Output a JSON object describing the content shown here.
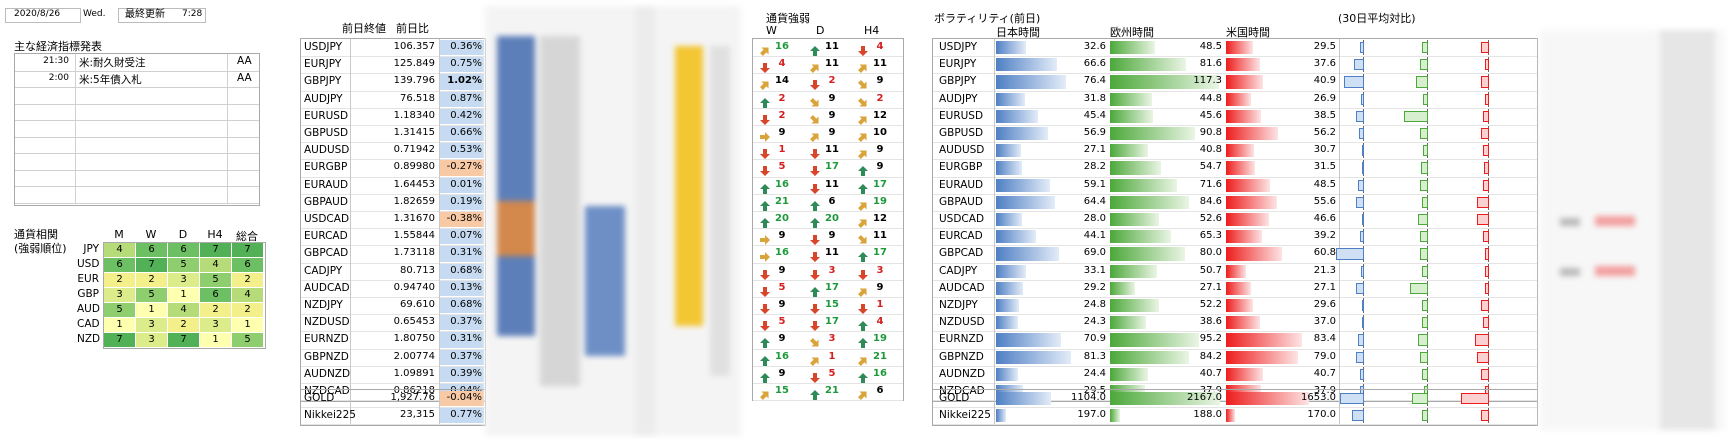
{
  "header": {
    "date": "2020/8/26",
    "weekday": "Wed.",
    "updated_label": "最終更新",
    "updated_time": "7:28"
  },
  "econ": {
    "title": "主な経済指標発表",
    "rows": [
      {
        "time": "21:30",
        "name": "米:耐久財受注",
        "rank": "AA"
      },
      {
        "time": "2:00",
        "name": "米:5年債入札",
        "rank": "AA"
      },
      {
        "time": "",
        "name": "",
        "rank": ""
      },
      {
        "time": "",
        "name": "",
        "rank": ""
      },
      {
        "time": "",
        "name": "",
        "rank": ""
      },
      {
        "time": "",
        "name": "",
        "rank": ""
      },
      {
        "time": "",
        "name": "",
        "rank": ""
      },
      {
        "time": "",
        "name": "",
        "rank": ""
      },
      {
        "time": "",
        "name": "",
        "rank": ""
      }
    ]
  },
  "corr": {
    "title1": "通貨相関",
    "title2": "(強弱順位)",
    "headers": [
      "M",
      "W",
      "D",
      "H4",
      "総合"
    ],
    "rows": [
      {
        "ccy": "JPY",
        "vals": [
          "4",
          "6",
          "6",
          "7",
          "7"
        ]
      },
      {
        "ccy": "USD",
        "vals": [
          "6",
          "7",
          "5",
          "4",
          "6"
        ]
      },
      {
        "ccy": "EUR",
        "vals": [
          "2",
          "2",
          "3",
          "5",
          "2"
        ]
      },
      {
        "ccy": "GBP",
        "vals": [
          "3",
          "5",
          "1",
          "6",
          "4"
        ]
      },
      {
        "ccy": "AUD",
        "vals": [
          "5",
          "1",
          "4",
          "2",
          "2"
        ]
      },
      {
        "ccy": "CAD",
        "vals": [
          "1",
          "3",
          "2",
          "3",
          "1"
        ]
      },
      {
        "ccy": "NZD",
        "vals": [
          "7",
          "3",
          "7",
          "1",
          "5"
        ]
      }
    ]
  },
  "quotes": {
    "col_close": "前日終値",
    "col_change": "前日比",
    "rows": [
      {
        "pair": "USDJPY",
        "close": "106.357",
        "chg": "0.36%",
        "sign": 1
      },
      {
        "pair": "EURJPY",
        "close": "125.849",
        "chg": "0.75%",
        "sign": 1
      },
      {
        "pair": "GBPJPY",
        "close": "139.796",
        "chg": "1.02%",
        "sign": 1,
        "bold": true
      },
      {
        "pair": "AUDJPY",
        "close": "76.518",
        "chg": "0.87%",
        "sign": 1
      },
      {
        "pair": "EURUSD",
        "close": "1.18340",
        "chg": "0.42%",
        "sign": 1
      },
      {
        "pair": "GBPUSD",
        "close": "1.31415",
        "chg": "0.66%",
        "sign": 1
      },
      {
        "pair": "AUDUSD",
        "close": "0.71942",
        "chg": "0.53%",
        "sign": 1
      },
      {
        "pair": "EURGBP",
        "close": "0.89980",
        "chg": "-0.27%",
        "sign": -1
      },
      {
        "pair": "EURAUD",
        "close": "1.64453",
        "chg": "0.01%",
        "sign": 1
      },
      {
        "pair": "GBPAUD",
        "close": "1.82659",
        "chg": "0.19%",
        "sign": 1
      },
      {
        "pair": "USDCAD",
        "close": "1.31670",
        "chg": "-0.38%",
        "sign": -1
      },
      {
        "pair": "EURCAD",
        "close": "1.55844",
        "chg": "0.07%",
        "sign": 1
      },
      {
        "pair": "GBPCAD",
        "close": "1.73118",
        "chg": "0.31%",
        "sign": 1
      },
      {
        "pair": "CADJPY",
        "close": "80.713",
        "chg": "0.68%",
        "sign": 1
      },
      {
        "pair": "AUDCAD",
        "close": "0.94740",
        "chg": "0.13%",
        "sign": 1
      },
      {
        "pair": "NZDJPY",
        "close": "69.610",
        "chg": "0.68%",
        "sign": 1
      },
      {
        "pair": "NZDUSD",
        "close": "0.65453",
        "chg": "0.37%",
        "sign": 1
      },
      {
        "pair": "EURNZD",
        "close": "1.80750",
        "chg": "0.31%",
        "sign": 1
      },
      {
        "pair": "GBPNZD",
        "close": "2.00774",
        "chg": "0.37%",
        "sign": 1
      },
      {
        "pair": "AUDNZD",
        "close": "1.09891",
        "chg": "0.39%",
        "sign": 1
      },
      {
        "pair": "NZDCAD",
        "close": "0.86218",
        "chg": "0.04%",
        "sign": 1
      }
    ],
    "extra": [
      {
        "pair": "GOLD",
        "close": "1,927.76",
        "chg": "-0.04%",
        "sign": -1
      },
      {
        "pair": "Nikkei225",
        "close": "23,315",
        "chg": "0.77%",
        "sign": 1
      }
    ]
  },
  "strength": {
    "title": "通貨強弱",
    "headers": [
      "W",
      "D",
      "H4"
    ],
    "rows": [
      {
        "w": "up-right",
        "wn": "16",
        "d": "up",
        "dn": "11",
        "h": "down",
        "hn": "4"
      },
      {
        "w": "down",
        "wn": "4",
        "d": "up-right",
        "dn": "11",
        "h": "up-right",
        "hn": "11"
      },
      {
        "w": "up-right",
        "wn": "14",
        "d": "down",
        "dn": "2",
        "h": "down-right",
        "hn": "9"
      },
      {
        "w": "up",
        "wn": "2",
        "d": "down-right",
        "dn": "9",
        "h": "down-right",
        "hn": "2"
      },
      {
        "w": "down",
        "wn": "2",
        "d": "down-right",
        "dn": "9",
        "h": "up-right",
        "hn": "12"
      },
      {
        "w": "right",
        "wn": "9",
        "d": "up-right",
        "dn": "9",
        "h": "up-right",
        "hn": "10"
      },
      {
        "w": "down",
        "wn": "1",
        "d": "down",
        "dn": "11",
        "h": "up-right",
        "hn": "9"
      },
      {
        "w": "down",
        "wn": "5",
        "d": "down",
        "dn": "17",
        "h": "up",
        "hn": "9"
      },
      {
        "w": "up",
        "wn": "16",
        "d": "down",
        "dn": "11",
        "h": "up",
        "hn": "17"
      },
      {
        "w": "up",
        "wn": "21",
        "d": "up",
        "dn": "6",
        "h": "up-right",
        "hn": "19"
      },
      {
        "w": "up",
        "wn": "20",
        "d": "up",
        "dn": "20",
        "h": "up-right",
        "hn": "12"
      },
      {
        "w": "right",
        "wn": "9",
        "d": "down",
        "dn": "9",
        "h": "down-right",
        "hn": "11"
      },
      {
        "w": "right",
        "wn": "16",
        "d": "down",
        "dn": "11",
        "h": "up",
        "hn": "17"
      },
      {
        "w": "down",
        "wn": "9",
        "d": "down",
        "dn": "3",
        "h": "down",
        "hn": "3"
      },
      {
        "w": "down",
        "wn": "5",
        "d": "up",
        "dn": "17",
        "h": "up-right",
        "hn": "9"
      },
      {
        "w": "down",
        "wn": "9",
        "d": "down",
        "dn": "15",
        "h": "down",
        "hn": "1"
      },
      {
        "w": "down",
        "wn": "5",
        "d": "down",
        "dn": "17",
        "h": "up",
        "hn": "4"
      },
      {
        "w": "up",
        "wn": "9",
        "d": "down-right",
        "dn": "3",
        "h": "up",
        "hn": "19"
      },
      {
        "w": "up",
        "wn": "16",
        "d": "up-right",
        "dn": "1",
        "h": "up-right",
        "hn": "21"
      },
      {
        "w": "up",
        "wn": "9",
        "d": "down",
        "dn": "5",
        "h": "up",
        "hn": "16"
      },
      {
        "w": "up-right",
        "wn": "15",
        "d": "up",
        "dn": "21",
        "h": "up-right",
        "hn": "6"
      }
    ]
  },
  "vol": {
    "title": "ボラティリティ(前日)",
    "title30": "(30日平均対比)",
    "col_jp": "日本時間",
    "col_eu": "欧州時間",
    "col_us": "米国時間",
    "max": 120,
    "max_extra": 2200,
    "rows": [
      {
        "pair": "USDJPY",
        "jp": "32.6",
        "eu": "48.5",
        "us": "29.5"
      },
      {
        "pair": "EURJPY",
        "jp": "66.6",
        "eu": "81.6",
        "us": "37.6"
      },
      {
        "pair": "GBPJPY",
        "jp": "76.4",
        "eu": "117.3",
        "us": "40.9"
      },
      {
        "pair": "AUDJPY",
        "jp": "31.8",
        "eu": "44.8",
        "us": "26.9"
      },
      {
        "pair": "EURUSD",
        "jp": "45.4",
        "eu": "45.6",
        "us": "38.5"
      },
      {
        "pair": "GBPUSD",
        "jp": "56.9",
        "eu": "90.8",
        "us": "56.2"
      },
      {
        "pair": "AUDUSD",
        "jp": "27.1",
        "eu": "40.8",
        "us": "30.7"
      },
      {
        "pair": "EURGBP",
        "jp": "28.2",
        "eu": "54.7",
        "us": "31.5"
      },
      {
        "pair": "EURAUD",
        "jp": "59.1",
        "eu": "71.6",
        "us": "48.5"
      },
      {
        "pair": "GBPAUD",
        "jp": "64.4",
        "eu": "84.6",
        "us": "55.6"
      },
      {
        "pair": "USDCAD",
        "jp": "28.0",
        "eu": "52.6",
        "us": "46.6"
      },
      {
        "pair": "EURCAD",
        "jp": "44.1",
        "eu": "65.3",
        "us": "39.2"
      },
      {
        "pair": "GBPCAD",
        "jp": "69.0",
        "eu": "80.0",
        "us": "60.8"
      },
      {
        "pair": "CADJPY",
        "jp": "33.1",
        "eu": "50.7",
        "us": "21.3"
      },
      {
        "pair": "AUDCAD",
        "jp": "29.2",
        "eu": "27.1",
        "us": "27.1"
      },
      {
        "pair": "NZDJPY",
        "jp": "24.8",
        "eu": "52.2",
        "us": "29.6"
      },
      {
        "pair": "NZDUSD",
        "jp": "24.3",
        "eu": "38.6",
        "us": "37.0"
      },
      {
        "pair": "EURNZD",
        "jp": "70.9",
        "eu": "95.2",
        "us": "83.4"
      },
      {
        "pair": "GBPNZD",
        "jp": "81.3",
        "eu": "84.2",
        "us": "79.0"
      },
      {
        "pair": "AUDNZD",
        "jp": "24.4",
        "eu": "40.7",
        "us": "40.7"
      },
      {
        "pair": "NZDCAD",
        "jp": "29.5",
        "eu": "37.9",
        "us": "37.9"
      }
    ],
    "extra": [
      {
        "pair": "GOLD",
        "jp": "1104.0",
        "eu": "2167.0",
        "us": "1653.0"
      },
      {
        "pair": "Nikkei225",
        "jp": "197.0",
        "eu": "188.0",
        "us": "170.0"
      }
    ],
    "ratio": [
      [
        0.1,
        0.15,
        0.2
      ],
      [
        0.25,
        0.2,
        0.1
      ],
      [
        0.5,
        0.3,
        0.2
      ],
      [
        0.08,
        0.12,
        0.1
      ],
      [
        0.2,
        0.6,
        0.15
      ],
      [
        0.12,
        0.2,
        0.2
      ],
      [
        0.05,
        0.12,
        0.15
      ],
      [
        0.05,
        0.18,
        0.12
      ],
      [
        0.15,
        0.2,
        0.15
      ],
      [
        0.2,
        0.15,
        0.3
      ],
      [
        0.05,
        0.25,
        0.3
      ],
      [
        0.1,
        0.2,
        0.15
      ],
      [
        0.7,
        0.2,
        0.1
      ],
      [
        0.08,
        0.15,
        0.1
      ],
      [
        0.2,
        0.45,
        0.1
      ],
      [
        0.05,
        0.15,
        0.2
      ],
      [
        0.05,
        0.15,
        0.15
      ],
      [
        0.15,
        0.25,
        0.35
      ],
      [
        0.2,
        0.2,
        0.3
      ],
      [
        0.1,
        0.15,
        0.2
      ],
      [
        0.1,
        0.1,
        0.1
      ]
    ],
    "ratio_extra": [
      [
        0.6,
        0.4,
        0.7
      ],
      [
        0.3,
        0.15,
        0.2
      ]
    ]
  }
}
